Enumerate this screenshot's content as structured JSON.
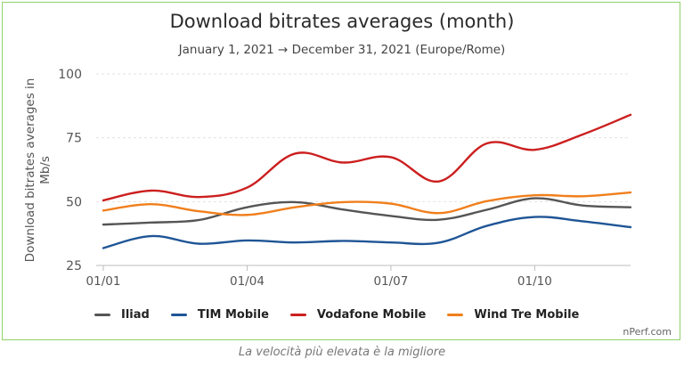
{
  "chart_data": {
    "type": "line",
    "title": "Download bitrates averages (month)",
    "subtitle": "January 1, 2021 → December 31, 2021 (Europe/Rome)",
    "ylabel": "Download bitrates averages in Mb/s",
    "xlabel": "",
    "x": [
      "2021-01",
      "2021-02",
      "2021-03",
      "2021-04",
      "2021-05",
      "2021-06",
      "2021-07",
      "2021-08",
      "2021-09",
      "2021-10",
      "2021-11",
      "2021-12"
    ],
    "xticks": [
      "01/01",
      "01/04",
      "01/07",
      "01/10"
    ],
    "ylim": [
      25,
      100
    ],
    "yticks": [
      25,
      50,
      75,
      100
    ],
    "grid": "horizontal",
    "legend_position": "bottom",
    "series": [
      {
        "name": "Iliad",
        "color": "#555555",
        "values": [
          41,
          41.8,
          42.8,
          47.8,
          49.8,
          46.9,
          44.4,
          42.9,
          46.8,
          51.3,
          48.5,
          47.8
        ]
      },
      {
        "name": "TIM Mobile",
        "color": "#1f5596",
        "values": [
          31.8,
          36.5,
          33.5,
          34.8,
          34,
          34.6,
          34,
          33.9,
          40.5,
          44,
          42.3,
          40
        ]
      },
      {
        "name": "Vodafone Mobile",
        "color": "#cc1f1f",
        "values": [
          50.5,
          54.3,
          51.8,
          55.5,
          68.8,
          65.3,
          67.4,
          57.9,
          72.8,
          70.3,
          76.3,
          84
        ]
      },
      {
        "name": "Wind Tre Mobile",
        "color": "#f07f1c",
        "values": [
          46.5,
          49,
          46.2,
          44.8,
          47.8,
          49.8,
          49.2,
          45.5,
          50.2,
          52.5,
          52.1,
          53.6
        ]
      }
    ]
  },
  "credit": "nPerf.com",
  "caption": "La velocità più elevata è la migliore"
}
